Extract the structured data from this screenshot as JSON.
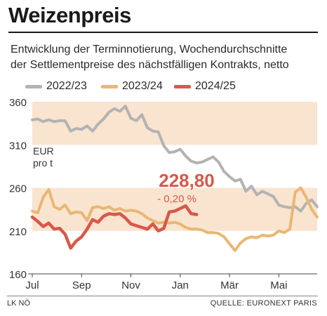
{
  "title": "Weizenpreis",
  "subtitle_lines": [
    "Entwicklung der Terminnotierung, Wochendurchschnitte",
    "der Settlementpreise des nächstfälligen Kontrakts, netto"
  ],
  "footer": {
    "left": "LK NÖ",
    "right": "QUELLE: EURONEXT PARIS"
  },
  "colors": {
    "2022/23": "#b3b3b3",
    "2023/24": "#e9b774",
    "2024/25": "#d8584a",
    "band": "#f9e4d0",
    "axis_text": "#333333",
    "callout": "#d8584a"
  },
  "chart_data": {
    "type": "line",
    "unit_label": [
      "EUR",
      "pro t"
    ],
    "yticks": [
      160,
      210,
      260,
      310,
      360
    ],
    "ylim": [
      160,
      360
    ],
    "xticks": [
      "Jul",
      "Sep",
      "Nov",
      "Jan",
      "Mär",
      "Mai"
    ],
    "x_weeks": [
      0,
      9,
      18,
      27,
      36,
      45
    ],
    "xlim": [
      0,
      52
    ],
    "grid": false,
    "shaded_bands": [
      [
        210,
        260
      ],
      [
        310,
        360
      ]
    ],
    "callout": {
      "value": "228,80",
      "change": "- 0,20 %"
    },
    "series": [
      {
        "name": "2022/23",
        "x": [
          0,
          1,
          2,
          3,
          4,
          5,
          6,
          7,
          8,
          9,
          10,
          11,
          12,
          13,
          14,
          15,
          16,
          17,
          18,
          19,
          20,
          21,
          22,
          23,
          24,
          25,
          26,
          27,
          28,
          29,
          30,
          31,
          32,
          33,
          34,
          35,
          36,
          37,
          38,
          39,
          40,
          41,
          42,
          43,
          44,
          45,
          46,
          47,
          48,
          49,
          50,
          51,
          52
        ],
        "values": [
          339,
          340,
          337,
          339,
          337,
          338,
          338,
          326,
          329,
          328,
          332,
          326,
          334,
          340,
          348,
          352,
          349,
          355,
          341,
          338,
          345,
          330,
          326,
          325,
          309,
          301,
          302,
          305,
          297,
          291,
          289,
          290,
          293,
          296,
          290,
          279,
          273,
          268,
          270,
          256,
          262,
          252,
          256,
          253,
          250,
          240,
          238,
          237,
          238,
          233,
          242,
          246,
          238
        ]
      },
      {
        "name": "2023/24",
        "x": [
          0,
          1,
          2,
          3,
          4,
          5,
          6,
          7,
          8,
          9,
          10,
          11,
          12,
          13,
          14,
          15,
          16,
          17,
          18,
          19,
          20,
          21,
          22,
          23,
          24,
          25,
          26,
          27,
          28,
          29,
          30,
          31,
          32,
          33,
          34,
          35,
          36,
          37,
          38,
          39,
          40,
          41,
          42,
          43,
          44,
          45,
          46,
          47,
          48,
          49,
          50,
          51,
          52
        ],
        "values": [
          233,
          231,
          249,
          258,
          238,
          235,
          240,
          230,
          232,
          231,
          222,
          237,
          238,
          236,
          238,
          234,
          236,
          233,
          234,
          233,
          230,
          225,
          222,
          219,
          220,
          219,
          220,
          218,
          214,
          212,
          212,
          211,
          208,
          208,
          207,
          203,
          195,
          187,
          196,
          201,
          203,
          202,
          205,
          204,
          205,
          210,
          208,
          212,
          255,
          260,
          249,
          235,
          226
        ]
      },
      {
        "name": "2024/25",
        "x": [
          0,
          1,
          2,
          3,
          4,
          5,
          6,
          7,
          8,
          9,
          10,
          11,
          12,
          13,
          14,
          15,
          16,
          17,
          18,
          19,
          20,
          21,
          22,
          23,
          24,
          25,
          26,
          27,
          28,
          29,
          30
        ],
        "values": [
          226,
          221,
          215,
          219,
          212,
          213,
          206,
          190,
          198,
          203,
          212,
          223,
          220,
          227,
          230,
          229,
          230,
          225,
          218,
          216,
          214,
          212,
          218,
          210,
          213,
          232,
          233,
          236,
          239,
          230,
          229
        ]
      }
    ]
  }
}
